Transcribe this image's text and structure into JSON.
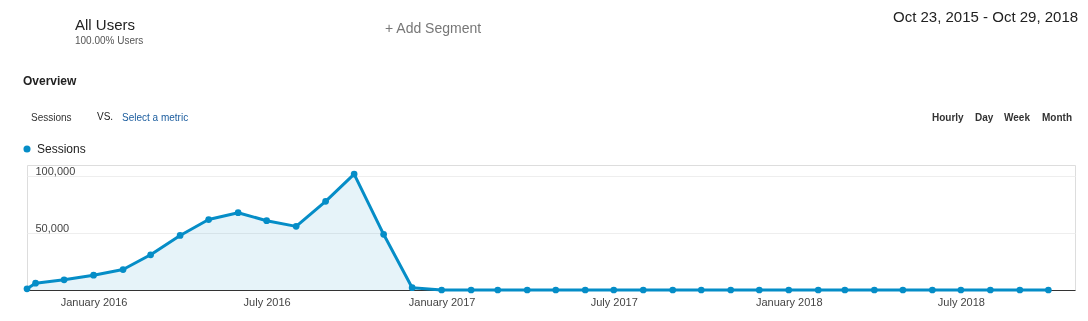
{
  "chart_data": {
    "type": "area",
    "annotations": [
      "All Users",
      "100.00% Users",
      "+ Add Segment",
      "Oct 23, 2015 - Oct 29, 2018",
      "Overview",
      "Sessions",
      "VS.",
      "Select a metric",
      "Hourly",
      "Day",
      "Week",
      "Month"
    ],
    "x": [
      "2015-10-23",
      "2015-11-01",
      "2015-12-01",
      "2016-01-01",
      "2016-02-01",
      "2016-03-01",
      "2016-04-01",
      "2016-05-01",
      "2016-06-01",
      "2016-07-01",
      "2016-08-01",
      "2016-09-01",
      "2016-10-01",
      "2016-11-01",
      "2016-12-01",
      "2017-01-01",
      "2017-02-01",
      "2017-03-01",
      "2017-04-01",
      "2017-05-01",
      "2017-06-01",
      "2017-07-01",
      "2017-08-01",
      "2017-09-01",
      "2017-10-01",
      "2017-11-01",
      "2017-12-01",
      "2018-01-01",
      "2018-02-01",
      "2018-03-01",
      "2018-04-01",
      "2018-05-01",
      "2018-06-01",
      "2018-07-01",
      "2018-08-01",
      "2018-09-01",
      "2018-10-01"
    ],
    "series": [
      {
        "name": "Sessions",
        "color": "#058dc7",
        "values": [
          1000,
          6000,
          9000,
          13000,
          18000,
          31000,
          48000,
          62000,
          68000,
          61000,
          56000,
          78000,
          102000,
          49000,
          2000,
          0,
          0,
          0,
          0,
          0,
          0,
          0,
          0,
          0,
          0,
          0,
          0,
          0,
          0,
          0,
          0,
          0,
          0,
          0,
          0,
          0,
          0
        ]
      }
    ],
    "xlim": [
      "2015-10-23",
      "2018-10-29"
    ],
    "xticks": [
      {
        "value": "2016-01-01",
        "label": "January 2016"
      },
      {
        "value": "2016-07-01",
        "label": "July 2016"
      },
      {
        "value": "2017-01-01",
        "label": "January 2017"
      },
      {
        "value": "2017-07-01",
        "label": "July 2017"
      },
      {
        "value": "2018-01-01",
        "label": "January 2018"
      },
      {
        "value": "2018-07-01",
        "label": "July 2018"
      }
    ],
    "ylim": [
      0,
      110000
    ],
    "yticks": [
      {
        "value": 50000,
        "label": "50,000"
      },
      {
        "value": 100000,
        "label": "100,000"
      }
    ],
    "grid": "y",
    "legend": "top left",
    "marker": "circle",
    "line_style": "solid"
  }
}
